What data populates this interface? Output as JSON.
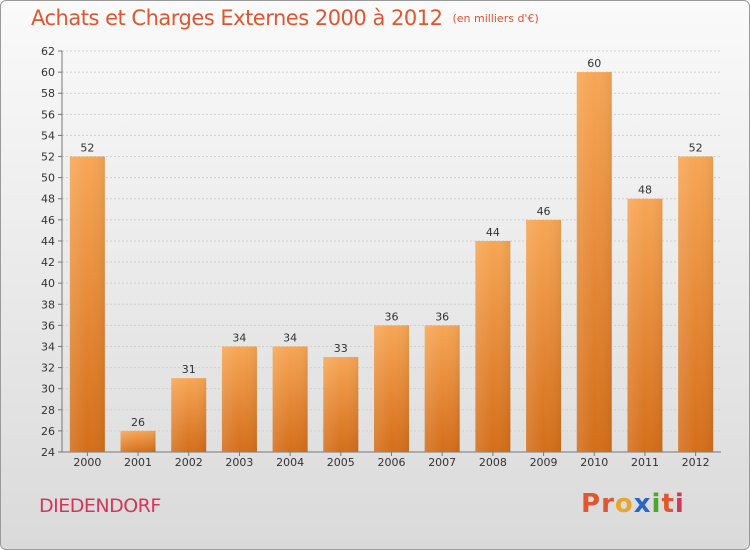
{
  "title": "Achats et Charges Externes 2000 à 2012",
  "unit_note": "(en milliers d'€)",
  "commune": "DIEDENDORF",
  "logo": {
    "text": "Proxiti",
    "colors": [
      "#e0562f",
      "#e0562f",
      "#e8a62a",
      "#2a66c7",
      "#4ea52c",
      "#e0562f",
      "#d4365a"
    ]
  },
  "colors": {
    "bar_top": "#f7a655",
    "bar_bottom": "#d46e1a",
    "title": "#e0562f",
    "commune": "#d4365a"
  },
  "chart_data": {
    "type": "bar",
    "categories": [
      "2000",
      "2001",
      "2002",
      "2003",
      "2004",
      "2005",
      "2006",
      "2007",
      "2008",
      "2009",
      "2010",
      "2011",
      "2012"
    ],
    "values": [
      52,
      26,
      31,
      34,
      34,
      33,
      36,
      36,
      44,
      46,
      60,
      48,
      52
    ],
    "ylim": [
      24,
      62
    ],
    "yticks": [
      24,
      26,
      28,
      30,
      32,
      34,
      36,
      38,
      40,
      42,
      44,
      46,
      48,
      50,
      52,
      54,
      56,
      58,
      60,
      62
    ],
    "grid": true,
    "data_labels": true
  }
}
